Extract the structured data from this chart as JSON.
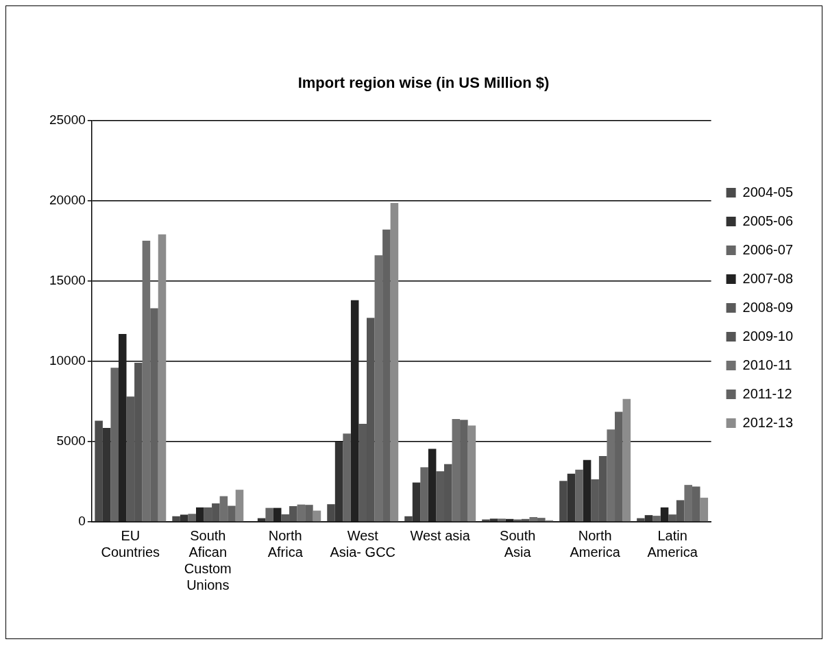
{
  "chart_data": {
    "type": "bar",
    "title": "Import region wise (in US Million $)",
    "categories": [
      "EU Countries",
      "South Afican Custom Unions",
      "North Africa",
      "West Asia- GCC",
      "West asia",
      "South Asia",
      "North America",
      "Latin America"
    ],
    "series": [
      {
        "name": "2004-05",
        "color": "#4a4a4a",
        "values": [
          6300,
          350,
          null,
          1100,
          350,
          150,
          2550,
          230
        ]
      },
      {
        "name": "2005-06",
        "color": "#333333",
        "values": [
          5850,
          450,
          230,
          5000,
          2450,
          200,
          3000,
          420
        ]
      },
      {
        "name": "2006-07",
        "color": "#666666",
        "values": [
          9600,
          500,
          870,
          5500,
          3400,
          200,
          3250,
          380
        ]
      },
      {
        "name": "2007-08",
        "color": "#222222",
        "values": [
          11700,
          900,
          870,
          13800,
          4550,
          180,
          3850,
          900
        ]
      },
      {
        "name": "2008-09",
        "color": "#5a5a5a",
        "values": [
          7800,
          900,
          470,
          6100,
          3150,
          150,
          2650,
          460
        ]
      },
      {
        "name": "2009-10",
        "color": "#555555",
        "values": [
          9900,
          1150,
          980,
          12700,
          3600,
          180,
          4100,
          1350
        ]
      },
      {
        "name": "2010-11",
        "color": "#707070",
        "values": [
          17500,
          1600,
          1080,
          16600,
          6400,
          300,
          5750,
          2300
        ]
      },
      {
        "name": "2011-12",
        "color": "#626262",
        "values": [
          13300,
          1000,
          1060,
          18200,
          6350,
          250,
          6850,
          2200
        ]
      },
      {
        "name": "2012-13",
        "color": "#8c8c8c",
        "values": [
          17900,
          2000,
          700,
          19850,
          6000,
          100,
          7650,
          1500
        ]
      }
    ],
    "ylim": [
      0,
      25000
    ],
    "yticks": [
      0,
      5000,
      10000,
      15000,
      20000,
      25000
    ],
    "grid": "y",
    "legend": "right"
  }
}
